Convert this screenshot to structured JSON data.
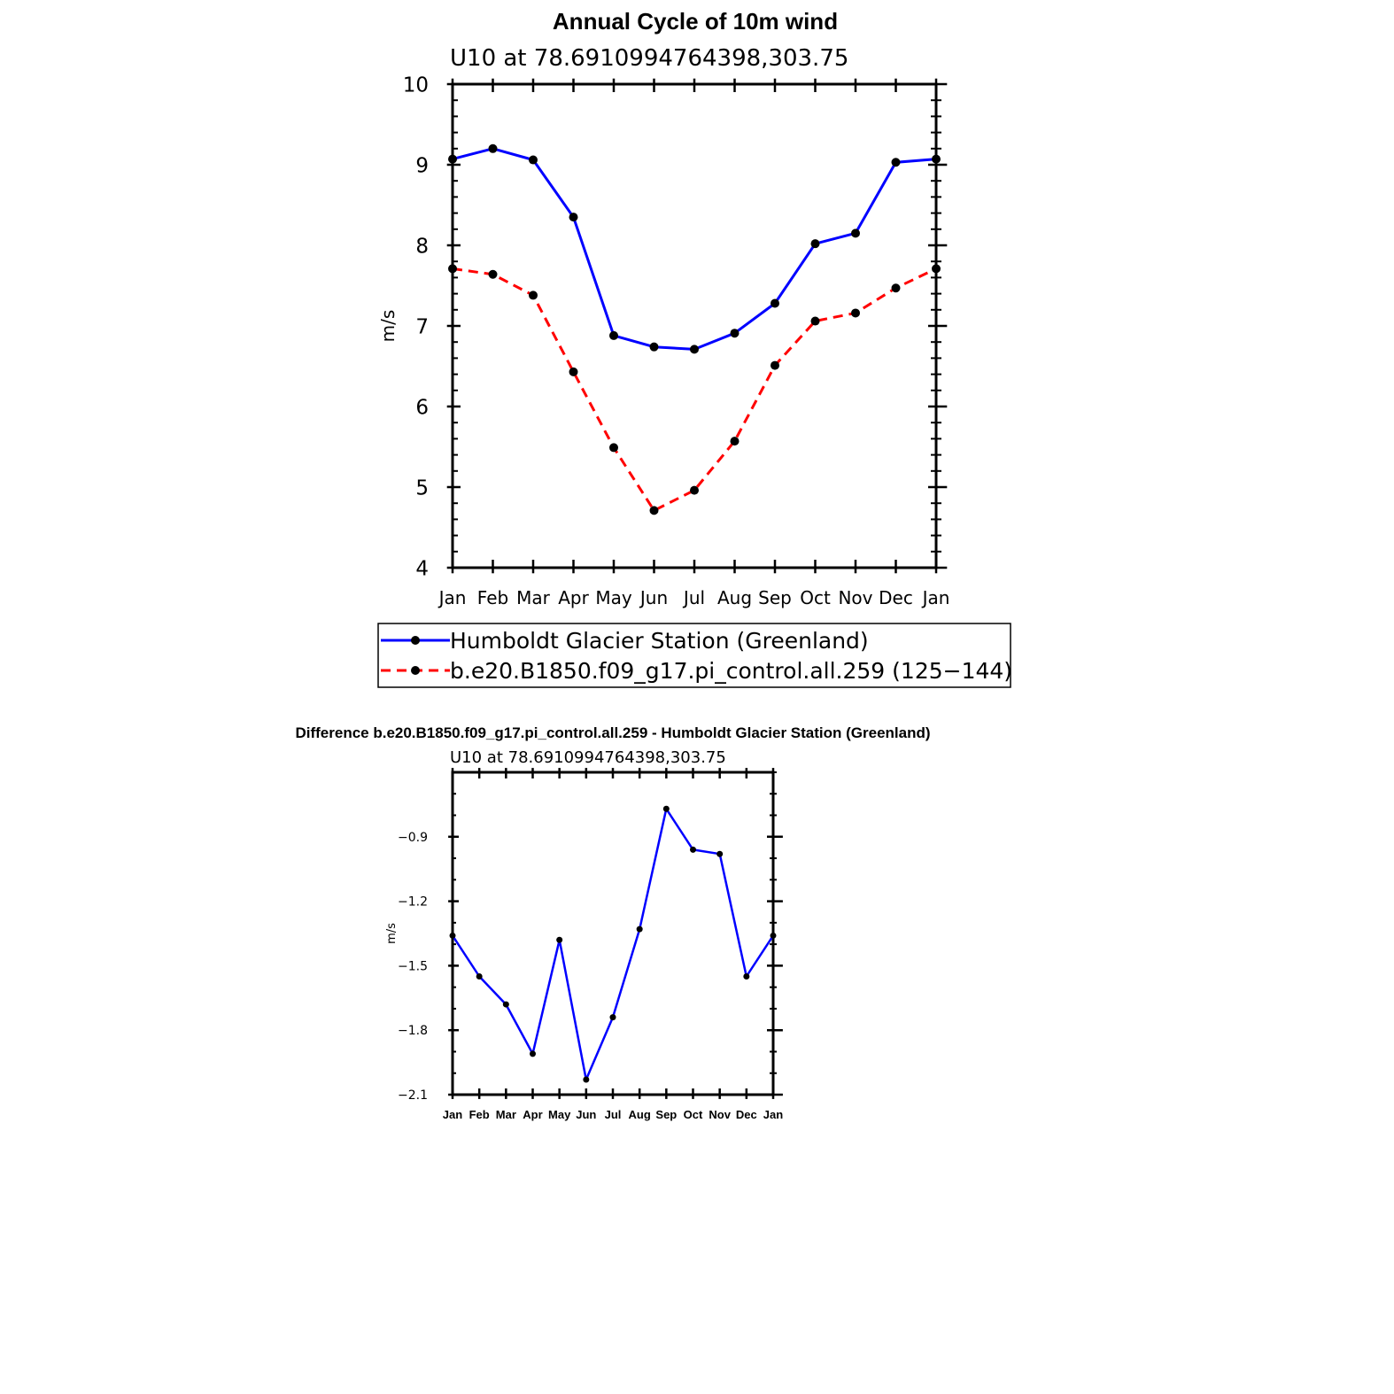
{
  "chart_data": [
    {
      "type": "line",
      "title": "Annual Cycle of 10m wind",
      "subtitle": "U10 at 78.6910994764398,303.75",
      "xlabel": "",
      "ylabel": "m/s",
      "categories": [
        "Jan",
        "Feb",
        "Mar",
        "Apr",
        "May",
        "Jun",
        "Jul",
        "Aug",
        "Sep",
        "Oct",
        "Nov",
        "Dec",
        "Jan"
      ],
      "ylim": [
        4,
        10
      ],
      "yticks": [
        "4",
        "5",
        "6",
        "7",
        "8",
        "9",
        "10"
      ],
      "grid": false,
      "legend_position": "bottom",
      "series": [
        {
          "name": "Humboldt Glacier Station (Greenland)",
          "color": "#0000ff",
          "dash": "solid",
          "values": [
            9.07,
            9.2,
            9.06,
            8.35,
            6.88,
            6.74,
            6.71,
            6.91,
            7.28,
            8.02,
            8.15,
            9.03,
            9.07
          ]
        },
        {
          "name": "b.e20.B1850.f09_g17.pi_control.all.259 (125−144)",
          "color": "#ff0000",
          "dash": "dashed",
          "values": [
            7.71,
            7.64,
            7.38,
            6.43,
            5.49,
            4.71,
            4.96,
            5.57,
            6.51,
            7.06,
            7.16,
            7.47,
            7.71
          ]
        }
      ]
    },
    {
      "type": "line",
      "title": "Difference b.e20.B1850.f09_g17.pi_control.all.259 - Humboldt Glacier Station (Greenland)",
      "subtitle": "U10 at 78.6910994764398,303.75",
      "xlabel": "",
      "ylabel": "m/s",
      "categories": [
        "Jan",
        "Feb",
        "Mar",
        "Apr",
        "May",
        "Jun",
        "Jul",
        "Aug",
        "Sep",
        "Oct",
        "Nov",
        "Dec",
        "Jan"
      ],
      "ylim": [
        -2.1,
        -0.6
      ],
      "yticks": [
        "−2.1",
        "−1.8",
        "−1.5",
        "−1.2",
        "−0.9"
      ],
      "grid": false,
      "series": [
        {
          "name": "Difference",
          "color": "#0000ff",
          "dash": "solid",
          "values": [
            -1.36,
            -1.55,
            -1.68,
            -1.91,
            -1.38,
            -2.03,
            -1.74,
            -1.33,
            -0.77,
            -0.96,
            -0.98,
            -1.55,
            -1.36
          ]
        }
      ]
    }
  ]
}
